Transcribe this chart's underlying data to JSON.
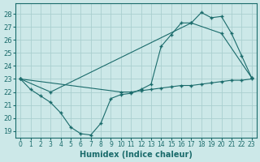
{
  "xlabel": "Humidex (Indice chaleur)",
  "bg_color": "#cce8e8",
  "grid_color": "#b0d0d0",
  "line_color": "#1a6b6b",
  "xlim": [
    -0.5,
    23.5
  ],
  "ylim": [
    18.5,
    28.8
  ],
  "yticks": [
    19,
    20,
    21,
    22,
    23,
    24,
    25,
    26,
    27,
    28
  ],
  "xticks": [
    0,
    1,
    2,
    3,
    4,
    5,
    6,
    7,
    8,
    9,
    10,
    11,
    12,
    13,
    14,
    15,
    16,
    17,
    18,
    19,
    20,
    21,
    22,
    23
  ],
  "line1_x": [
    0,
    1,
    2,
    3,
    4,
    5,
    6,
    7,
    8,
    9,
    10,
    11,
    12,
    13,
    14,
    15,
    16,
    17,
    18,
    19,
    20,
    21,
    22,
    23
  ],
  "line1_y": [
    23.0,
    22.2,
    21.7,
    21.2,
    20.4,
    19.3,
    18.8,
    18.7,
    19.6,
    21.5,
    21.8,
    21.9,
    22.2,
    22.6,
    25.5,
    26.4,
    27.3,
    27.3,
    28.1,
    27.7,
    27.8,
    26.5,
    24.8,
    23.1
  ],
  "line2_x": [
    0,
    3,
    17,
    20,
    23
  ],
  "line2_y": [
    23.0,
    22.0,
    27.3,
    26.5,
    23.1
  ],
  "line3_x": [
    0,
    10,
    11,
    12,
    13,
    14,
    15,
    16,
    17,
    18,
    19,
    20,
    21,
    22,
    23
  ],
  "line3_y": [
    23.0,
    22.0,
    22.0,
    22.1,
    22.2,
    22.3,
    22.4,
    22.5,
    22.5,
    22.6,
    22.7,
    22.8,
    22.9,
    22.9,
    23.0
  ]
}
